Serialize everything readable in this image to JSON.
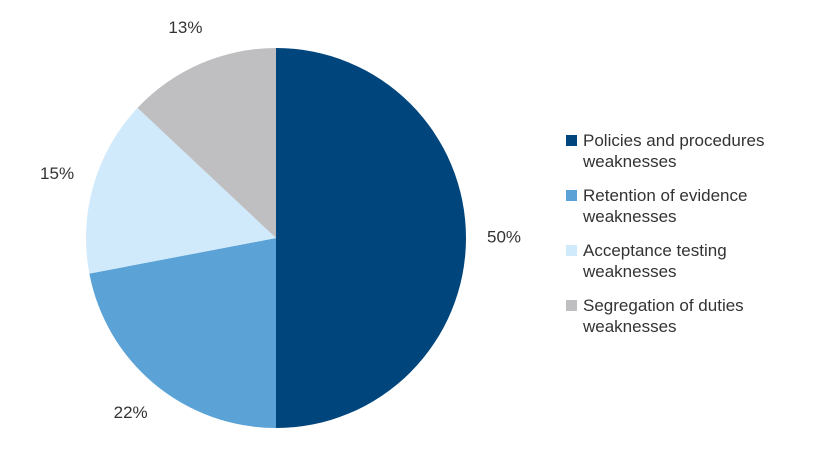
{
  "chart_data": {
    "type": "pie",
    "categories": [
      "Policies and procedures weaknesses",
      "Retention of evidence weaknesses",
      "Acceptance testing weaknesses",
      "Segregation of duties weaknesses"
    ],
    "values": [
      50,
      22,
      15,
      13
    ],
    "value_labels": [
      "50%",
      "22%",
      "15%",
      "13%"
    ],
    "colors": [
      "#00457c",
      "#5ba3d6",
      "#d0e9fb",
      "#bfbfc1"
    ],
    "legend": "right"
  }
}
